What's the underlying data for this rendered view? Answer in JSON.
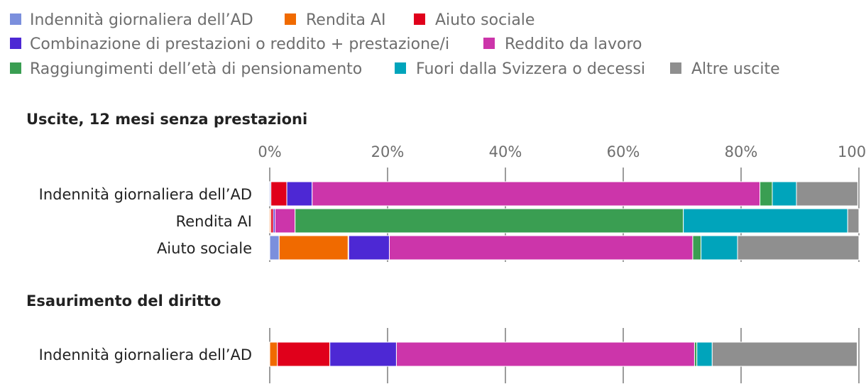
{
  "chart_data": {
    "type": "bar",
    "orientation": "horizontal",
    "stacked": true,
    "xlim": [
      0,
      100
    ],
    "ticks": [
      "0%",
      "20%",
      "40%",
      "60%",
      "80%",
      "100%"
    ],
    "legend_position": "top",
    "series": [
      {
        "name": "Indennità giornaliera dell’AD",
        "color": "#7b8fdd"
      },
      {
        "name": "Rendita AI",
        "color": "#f06a00"
      },
      {
        "name": "Aiuto sociale",
        "color": "#e0001b"
      },
      {
        "name": "Combinazione di prestazioni o reddito + prestazione/i",
        "color": "#4d28d4"
      },
      {
        "name": "Reddito da lavoro",
        "color": "#cc35aa"
      },
      {
        "name": "Raggiungimenti dell’età di pensionamento",
        "color": "#3a9e52"
      },
      {
        "name": "Fuori dalla Svizzera o decessi",
        "color": "#00a4bb"
      },
      {
        "name": "Altre uscite",
        "color": "#8f8f8f"
      }
    ],
    "legend_rows": [
      [
        0,
        1,
        2
      ],
      [
        3,
        4
      ],
      [
        5,
        6,
        7
      ]
    ],
    "panels": [
      {
        "title": "Uscite, 12 mesi senza prestazioni",
        "categories": [
          "Indennità giornaliera dell’AD",
          "Rendita AI",
          "Aiuto sociale"
        ],
        "values": [
          [
            0.2,
            0.0,
            2.7,
            4.3,
            76.0,
            2.1,
            4.1,
            10.4
          ],
          [
            0.0,
            0.2,
            0.4,
            0.3,
            3.4,
            65.9,
            27.9,
            1.9
          ],
          [
            1.6,
            11.7,
            0.1,
            6.9,
            51.5,
            1.4,
            6.2,
            20.6
          ]
        ]
      },
      {
        "title": "Esaurimento del diritto",
        "categories": [
          "Indennità giornaliera dell’AD"
        ],
        "values": [
          [
            0.0,
            1.3,
            8.9,
            11.3,
            50.6,
            0.4,
            2.6,
            24.6
          ]
        ]
      }
    ]
  }
}
